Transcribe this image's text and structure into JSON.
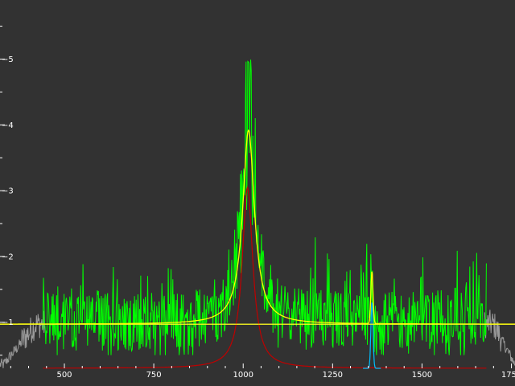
{
  "chart_data": {
    "type": "line",
    "background": "#323232",
    "grid": false,
    "xlim": [
      320,
      1760
    ],
    "ylim": [
      0.3,
      5.8
    ],
    "x_ticks": [
      500,
      750,
      1000,
      1250,
      1500,
      1750
    ],
    "y_ticks": [
      1,
      2,
      3,
      4,
      5
    ],
    "series": [
      {
        "color": "#9a9a9a",
        "role": "raw-data-outside-fit-range",
        "x_range": [
          320,
          1760
        ],
        "baseline": 0.95,
        "noise": 0.22,
        "edge_falloff": {
          "left": [
            330,
            420
          ],
          "right": [
            1700,
            1760
          ]
        }
      },
      {
        "color": "#00ff00",
        "role": "data-in-fit-range",
        "x_range": [
          440,
          1680
        ],
        "baseline": 1.0,
        "noise_amplitude": 0.75,
        "peak_center": 1015,
        "peak_height": 5.5
      },
      {
        "color": "#c00000",
        "role": "lorentzian-peak-component",
        "shape": "lorentzian",
        "center": 1012,
        "hwhm": 18,
        "amplitude": 2.75,
        "baseline": 0.3
      },
      {
        "color": "#00bfff",
        "role": "narrow-peak-component",
        "shape": "gaussian",
        "center": 1360,
        "sigma": 3,
        "amplitude": 1.0,
        "baseline": 0.3
      },
      {
        "color": "#ffff00",
        "role": "total-fit",
        "shape": "lorentzian+gaussian+constant",
        "constant": 0.97,
        "components": [
          {
            "center": 1015,
            "hwhm": 20,
            "amplitude": 2.95
          },
          {
            "center": 1360,
            "sigma": 3,
            "amplitude": 0.8
          }
        ]
      },
      {
        "color": "#ffff00",
        "role": "constant-background-level",
        "y": 0.97
      }
    ]
  }
}
